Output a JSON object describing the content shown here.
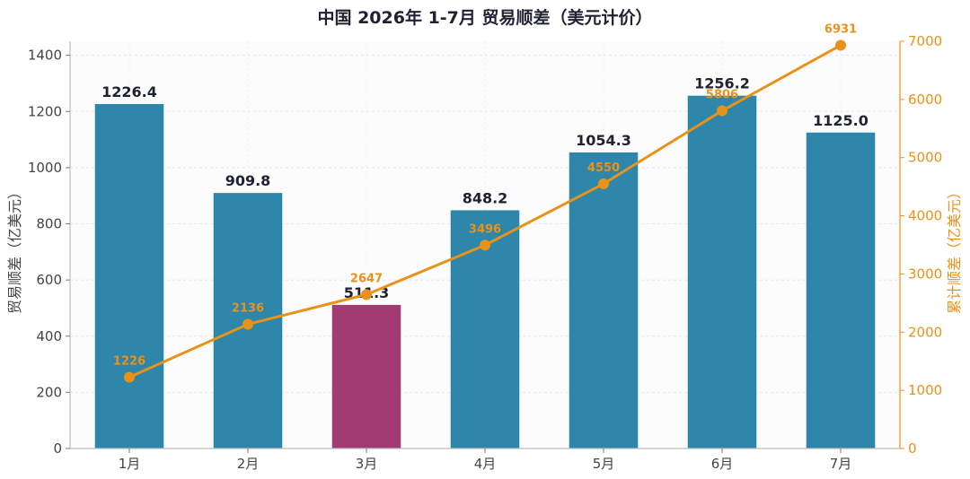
{
  "chart_data": {
    "type": "bar",
    "title": "中国 2026年 1-7月 贸易顺差（美元计价）",
    "categories": [
      "1月",
      "2月",
      "3月",
      "4月",
      "5月",
      "6月",
      "7月"
    ],
    "series": [
      {
        "values": [
          1226.4,
          909.8,
          511.3,
          848.2,
          1054.3,
          1256.2,
          1125.0
        ],
        "labels": [
          "1226.4",
          "909.8",
          "511.3",
          "848.2",
          "1054.3",
          "1256.2",
          "1125.0"
        ],
        "color": "#2e86ab",
        "highlight_color": "#a23b72",
        "highlight_index": 2,
        "axis": "left",
        "type": "bar"
      },
      {
        "values": [
          1226,
          2136,
          2647,
          3496,
          4550,
          5806,
          6931
        ],
        "labels": [
          "1226",
          "2136",
          "2647",
          "3496",
          "4550",
          "5806",
          "6931"
        ],
        "color": "#e8921a",
        "axis": "right",
        "type": "line"
      }
    ],
    "ylabel": "贸易顺差（亿美元）",
    "ylabel_right": "累计顺差（亿美元）",
    "ylim": [
      0,
      1450
    ],
    "ylim_right": [
      0,
      7000
    ],
    "yticks": [
      "0",
      "200",
      "400",
      "600",
      "800",
      "1000",
      "1200",
      "1400"
    ],
    "yticks_right": [
      "0",
      "1000",
      "2000",
      "3000",
      "4000",
      "5000",
      "6000",
      "7000"
    ],
    "grid": true
  }
}
